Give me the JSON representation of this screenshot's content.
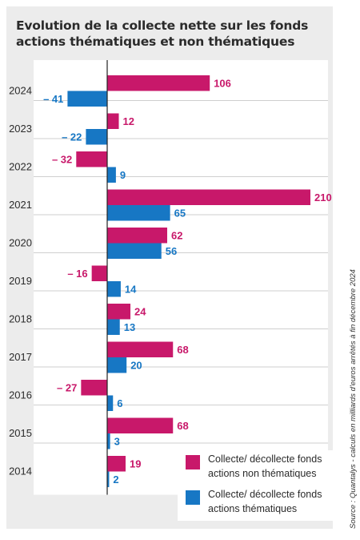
{
  "title": "Evolution de la collecte nette sur les fonds actions thématiques et non thématiques",
  "source": "Source : Quantalys - calculs en milliards d'euros arrêtés à fin décembre 2024",
  "colors": {
    "non_thematic": "#c8186a",
    "thematic": "#1777c4",
    "panel": "#ececec"
  },
  "legend": {
    "non_thematic": "Collecte/ décollecte fonds actions non thématiques",
    "thematic": "Collecte/ décollecte fonds actions thématiques"
  },
  "chart_data": {
    "type": "bar",
    "orientation": "horizontal",
    "categories": [
      "2024",
      "2023",
      "2022",
      "2021",
      "2020",
      "2019",
      "2018",
      "2017",
      "2016",
      "2015",
      "2014"
    ],
    "series": [
      {
        "name": "Collecte/ décollecte fonds actions non thématiques",
        "values": [
          106,
          12,
          -32,
          210,
          62,
          -16,
          24,
          68,
          -27,
          68,
          19
        ]
      },
      {
        "name": "Collecte/ décollecte fonds actions thématiques",
        "values": [
          -41,
          -22,
          9,
          65,
          56,
          14,
          13,
          20,
          6,
          3,
          2
        ]
      }
    ],
    "data_labels": {
      "non_thematic": [
        "106",
        "12",
        "– 32",
        "210",
        "62",
        "– 16",
        "24",
        "68",
        "– 27",
        "68",
        "19"
      ],
      "thematic": [
        "– 41",
        "– 22",
        "9",
        "65",
        "56",
        "14",
        "13",
        "20",
        "6",
        "3",
        "2"
      ]
    },
    "xlim": [
      -41,
      210
    ],
    "grid": true,
    "legend_position": "bottom-right"
  }
}
